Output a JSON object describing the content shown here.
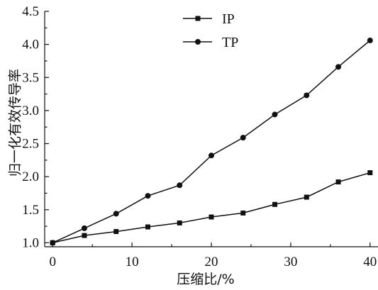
{
  "chart_data": {
    "type": "line",
    "title": "",
    "xlabel": "压缩比/%",
    "ylabel": "归一化有效传导率",
    "x": [
      0,
      4,
      8,
      12,
      16,
      20,
      24,
      28,
      32,
      36,
      40
    ],
    "xlim": [
      -1,
      41
    ],
    "ylim": [
      0.94,
      4.5
    ],
    "xticks": [
      0,
      10,
      20,
      30,
      40
    ],
    "yticks": [
      1.0,
      1.5,
      2.0,
      2.5,
      3.0,
      3.5,
      4.0,
      4.5
    ],
    "grid": false,
    "legend_position": "top-center",
    "series": [
      {
        "name": "IP",
        "marker": "square",
        "color": "#111111",
        "values": [
          1.0,
          1.11,
          1.17,
          1.24,
          1.3,
          1.39,
          1.45,
          1.58,
          1.69,
          1.92,
          2.06
        ]
      },
      {
        "name": "TP",
        "marker": "circle",
        "color": "#111111",
        "values": [
          1.0,
          1.22,
          1.44,
          1.71,
          1.87,
          2.32,
          2.59,
          2.94,
          3.23,
          3.66,
          4.06
        ]
      }
    ]
  }
}
